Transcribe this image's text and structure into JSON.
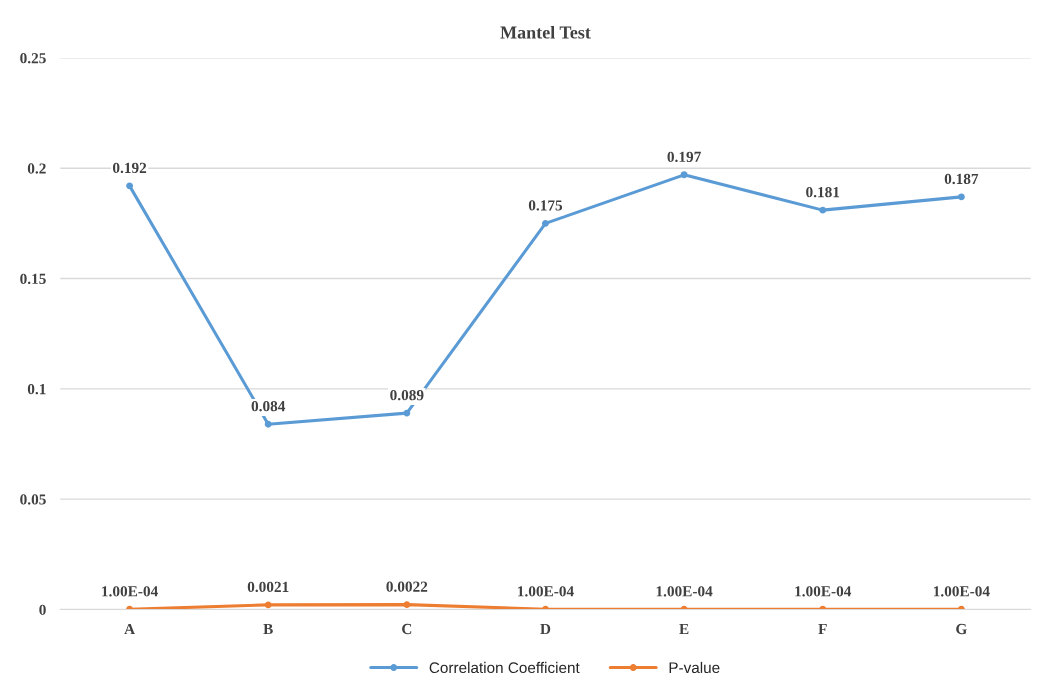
{
  "chart_data": {
    "type": "line",
    "title": "Mantel Test",
    "categories": [
      "A",
      "B",
      "C",
      "D",
      "E",
      "F",
      "G"
    ],
    "series": [
      {
        "name": "Correlation Coefficient",
        "color": "#5b9bd5",
        "values": [
          0.192,
          0.084,
          0.089,
          0.175,
          0.197,
          0.181,
          0.187
        ],
        "value_labels": [
          "0.192",
          "0.084",
          "0.089",
          "0.175",
          "0.197",
          "0.181",
          "0.187"
        ]
      },
      {
        "name": "P-value",
        "color": "#ed7d31",
        "values": [
          0.0001,
          0.0021,
          0.0022,
          0.0001,
          0.0001,
          0.0001,
          0.0001
        ],
        "value_labels": [
          "1.00E-04",
          "0.0021",
          "0.0022",
          "1.00E-04",
          "1.00E-04",
          "1.00E-04",
          "1.00E-04"
        ]
      }
    ],
    "ylim": [
      0,
      0.25
    ],
    "yticks": [
      0,
      0.05,
      0.1,
      0.15,
      0.2,
      0.25
    ],
    "grid": "y",
    "legend": "bottom",
    "marker": "circle",
    "line_style": "solid"
  }
}
